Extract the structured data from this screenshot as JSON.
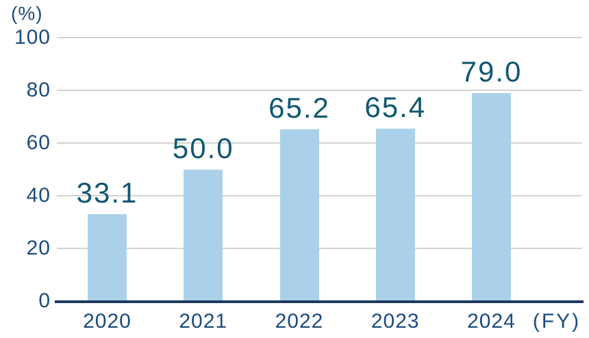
{
  "chart_data": {
    "type": "bar",
    "title": "",
    "categories": [
      "2020",
      "2021",
      "2022",
      "2023",
      "2024"
    ],
    "values": [
      33.1,
      50.0,
      65.2,
      65.4,
      79.0
    ],
    "value_labels": [
      "33.1",
      "50.0",
      "65.2",
      "65.4",
      "79.0"
    ],
    "unit_label": "(%)",
    "x_axis_suffix": "(FY)",
    "xlabel": "",
    "ylabel": "(%)",
    "yticks": [
      0,
      20,
      40,
      60,
      80,
      100
    ],
    "ylim": [
      0,
      100
    ],
    "grid": true,
    "legend": false,
    "colors": {
      "bar": "#abd1ea",
      "value_text": "#115670",
      "axis_text": "#1c4b7d",
      "axis_line": "#1d3a60",
      "gridline": "#d2d2d2",
      "background": "#ffffff"
    }
  }
}
